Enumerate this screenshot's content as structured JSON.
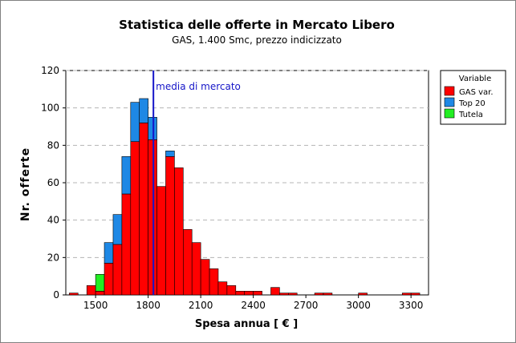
{
  "chart_data": {
    "type": "bar",
    "title": "Statistica delle offerte in Mercato Libero",
    "subtitle": "GAS, 1.400 Smc, prezzo indicizzato",
    "xlabel": "Spesa annua [ € ]",
    "ylabel": "Nr. offerte",
    "xlim": [
      1330,
      3400
    ],
    "ylim": [
      0,
      120
    ],
    "x_ticks": [
      1500,
      1800,
      2100,
      2400,
      2700,
      3000,
      3300
    ],
    "y_ticks": [
      0,
      20,
      40,
      60,
      80,
      100,
      120
    ],
    "grid": "horizontal-dashed",
    "bin_width": 50,
    "bin_starts": [
      1350,
      1450,
      1500,
      1550,
      1600,
      1650,
      1700,
      1750,
      1800,
      1850,
      1900,
      1950,
      2000,
      2050,
      2100,
      2150,
      2200,
      2250,
      2300,
      2350,
      2400,
      2450,
      2500,
      2550,
      2600,
      2650,
      2700,
      2750,
      2800,
      2850,
      2900,
      2950,
      3000,
      3050,
      3100,
      3150,
      3200,
      3250,
      3300
    ],
    "series": [
      {
        "name": "GAS var.",
        "color": "#ff0000",
        "values": [
          1,
          5,
          2,
          17,
          27,
          54,
          82,
          92,
          83,
          58,
          74,
          68,
          35,
          28,
          19,
          14,
          7,
          5,
          2,
          2,
          2,
          0,
          4,
          1,
          1,
          0,
          0,
          1,
          1,
          0,
          0,
          0,
          1,
          0,
          0,
          0,
          0,
          1,
          1
        ]
      },
      {
        "name": "Top 20",
        "color": "#1e88e5",
        "values": [
          0,
          0,
          0,
          11,
          16,
          20,
          21,
          13,
          12,
          0,
          3,
          0,
          0,
          0,
          0,
          0,
          0,
          0,
          0,
          0,
          0,
          0,
          0,
          0,
          0,
          0,
          0,
          0,
          0,
          0,
          0,
          0,
          0,
          0,
          0,
          0,
          0,
          0,
          0
        ]
      },
      {
        "name": "Tutela",
        "color": "#22ee22",
        "values": [
          0,
          0,
          9,
          0,
          0,
          0,
          0,
          0,
          0,
          0,
          0,
          0,
          0,
          0,
          0,
          0,
          0,
          0,
          0,
          0,
          0,
          0,
          0,
          0,
          0,
          0,
          0,
          0,
          0,
          0,
          0,
          0,
          0,
          0,
          0,
          0,
          0,
          0,
          0
        ]
      }
    ],
    "reference_line": {
      "x": 1830,
      "label": "media di mercato",
      "color": "#1515c8"
    },
    "legend": {
      "title": "Variable",
      "position": "right"
    }
  }
}
